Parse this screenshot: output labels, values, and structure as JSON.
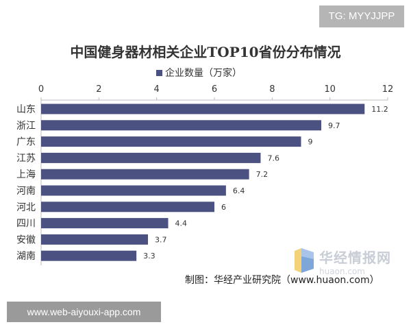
{
  "watermark_tag": "TG: MYYJJPP",
  "footer_tag": "www.web-aiyouxi-app.com",
  "source": "制图：华经产业研究院（www.huaon.com）",
  "logo": {
    "name": "华经情报网",
    "url": "huaon.com"
  },
  "colors": {
    "bar": "#4b5180",
    "axis": "#bdbdbd",
    "text": "#333333"
  },
  "chart_data": {
    "type": "bar",
    "orientation": "horizontal",
    "title": "中国健身器材相关企业TOP10省份分布情况",
    "categories": [
      "山东",
      "浙江",
      "广东",
      "江苏",
      "上海",
      "河南",
      "河北",
      "四川",
      "安徽",
      "湖南"
    ],
    "series": [
      {
        "name": "企业数量（万家）",
        "values": [
          11.2,
          9.7,
          9,
          7.6,
          7.2,
          6.4,
          6,
          4.4,
          3.7,
          3.3
        ]
      }
    ],
    "value_labels": [
      "11.2",
      "9.7",
      "9",
      "7.6",
      "7.2",
      "6.4",
      "6",
      "4.4",
      "3.7",
      "3.3"
    ],
    "xlim": [
      0,
      12
    ],
    "xticks": [
      "0",
      "2",
      "4",
      "6",
      "8",
      "10",
      "12"
    ],
    "x_axis_position": "top",
    "legend_position": "top-center",
    "grid": false
  }
}
